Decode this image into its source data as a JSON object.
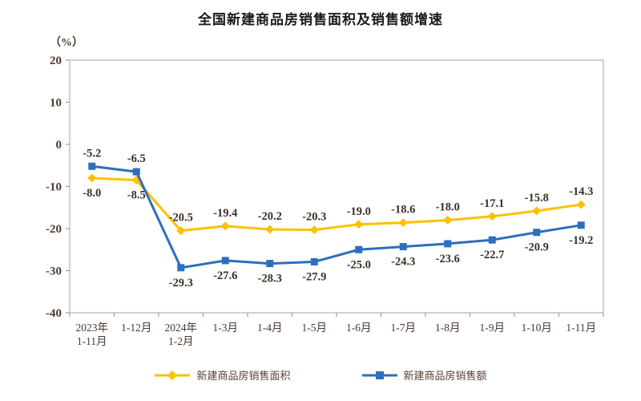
{
  "chart_data": {
    "type": "line",
    "title": "全国新建商品房销售面积及销售额增速",
    "unit_label": "（%）",
    "categories": [
      "2023年\n1-11月",
      "1-12月",
      "2024年\n1-2月",
      "1-3月",
      "1-4月",
      "1-5月",
      "1-6月",
      "1-7月",
      "1-8月",
      "1-9月",
      "1-10月",
      "1-11月"
    ],
    "yticks": [
      20,
      10,
      0,
      -10,
      -20,
      -30,
      -40
    ],
    "ylim": [
      -40,
      20
    ],
    "grid": false,
    "legend_position": "bottom",
    "series": [
      {
        "name": "新建商品房销售面积",
        "color": "#FFC000",
        "marker": "diamond",
        "values": [
          -8.0,
          -8.5,
          -20.5,
          -19.4,
          -20.2,
          -20.3,
          -19.0,
          -18.6,
          -18.0,
          -17.1,
          -15.8,
          -14.3
        ],
        "label_side": [
          "below",
          "below",
          "above",
          "above",
          "above",
          "above",
          "above",
          "above",
          "above",
          "above",
          "above",
          "above"
        ]
      },
      {
        "name": "新建商品房销售额",
        "color": "#2D6EBE",
        "marker": "square",
        "values": [
          -5.2,
          -6.5,
          -29.3,
          -27.6,
          -28.3,
          -27.9,
          -25.0,
          -24.3,
          -23.6,
          -22.7,
          -20.9,
          -19.2
        ],
        "label_side": [
          "above",
          "above",
          "below",
          "below",
          "below",
          "below",
          "below",
          "below",
          "below",
          "below",
          "below",
          "below"
        ]
      }
    ],
    "colors": {
      "axis_border": "#C6C6C6",
      "tick": "#9E9E9E",
      "axis_label_text": "#4A3A31",
      "data_label_text": "#3C3028",
      "title_text": "#1A1A1A"
    }
  }
}
